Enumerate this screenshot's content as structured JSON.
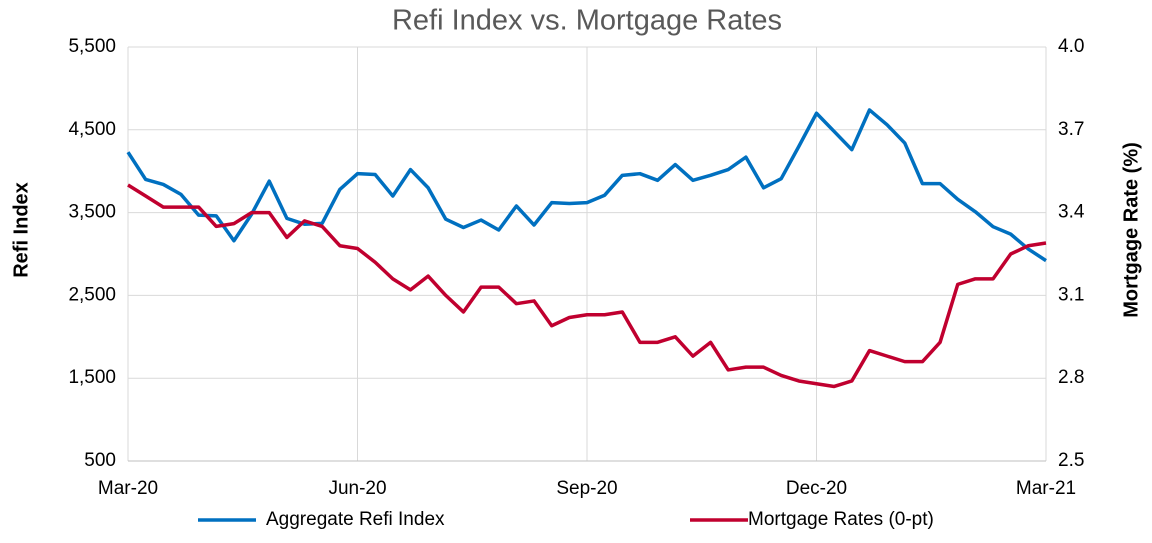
{
  "chart_data": {
    "type": "line",
    "title": "Refi Index vs. Mortgage Rates",
    "y_label": "Refi Index",
    "y2_label": "Mortgage Rate (%)",
    "categories": [
      "Mar-20",
      null,
      null,
      null,
      null,
      null,
      null,
      null,
      null,
      null,
      null,
      null,
      null,
      "Jun-20",
      null,
      null,
      null,
      null,
      null,
      null,
      null,
      null,
      null,
      null,
      null,
      null,
      "Sep-20",
      null,
      null,
      null,
      null,
      null,
      null,
      null,
      null,
      null,
      null,
      null,
      null,
      "Dec-20",
      null,
      null,
      null,
      null,
      null,
      null,
      null,
      null,
      null,
      null,
      null,
      null,
      "Mar-21"
    ],
    "series": [
      {
        "name": "Aggregate Refi Index",
        "color": "#0070c0",
        "axis": "y",
        "values": [
          4230,
          3900,
          3840,
          3720,
          3470,
          3460,
          3160,
          3480,
          3880,
          3430,
          3360,
          3370,
          3780,
          3970,
          3960,
          3700,
          4020,
          3800,
          3420,
          3320,
          3410,
          3290,
          3580,
          3350,
          3620,
          3610,
          3620,
          3710,
          3950,
          3970,
          3890,
          4080,
          3890,
          3950,
          4020,
          4170,
          3800,
          3910,
          4300,
          4700,
          4480,
          4260,
          4740,
          4560,
          4340,
          3850,
          3850,
          3660,
          3510,
          3330,
          3240,
          3060,
          2920
        ]
      },
      {
        "name": "Mortgage Rates (0-pt)",
        "color": "#c0002f",
        "axis": "y2",
        "values": [
          3.5,
          3.46,
          3.42,
          3.42,
          3.42,
          3.35,
          3.36,
          3.4,
          3.4,
          3.31,
          3.37,
          3.35,
          3.28,
          3.27,
          3.22,
          3.16,
          3.12,
          3.17,
          3.1,
          3.04,
          3.13,
          3.13,
          3.07,
          3.08,
          2.99,
          3.02,
          3.03,
          3.03,
          3.04,
          2.93,
          2.93,
          2.95,
          2.88,
          2.93,
          2.83,
          2.84,
          2.84,
          2.81,
          2.79,
          2.78,
          2.77,
          2.79,
          2.9,
          2.88,
          2.86,
          2.86,
          2.93,
          3.14,
          3.16,
          3.16,
          3.25,
          3.28,
          3.29
        ]
      }
    ],
    "ylim": [
      500,
      5500
    ],
    "yticks": [
      500,
      {
        "value": 1500,
        "label": "1,500"
      },
      {
        "value": 2500,
        "label": "2,500"
      },
      {
        "value": 3500,
        "label": "3,500"
      },
      {
        "value": 4500,
        "label": "4,500"
      },
      {
        "value": 5500,
        "label": "5,500"
      }
    ],
    "y2lim": [
      2.5,
      4.0
    ],
    "y2ticks": [
      2.5,
      2.8,
      3.1,
      3.4,
      3.7,
      {
        "value": 4.0,
        "label": "4.0"
      }
    ],
    "grid": true,
    "legend": "bottom"
  }
}
